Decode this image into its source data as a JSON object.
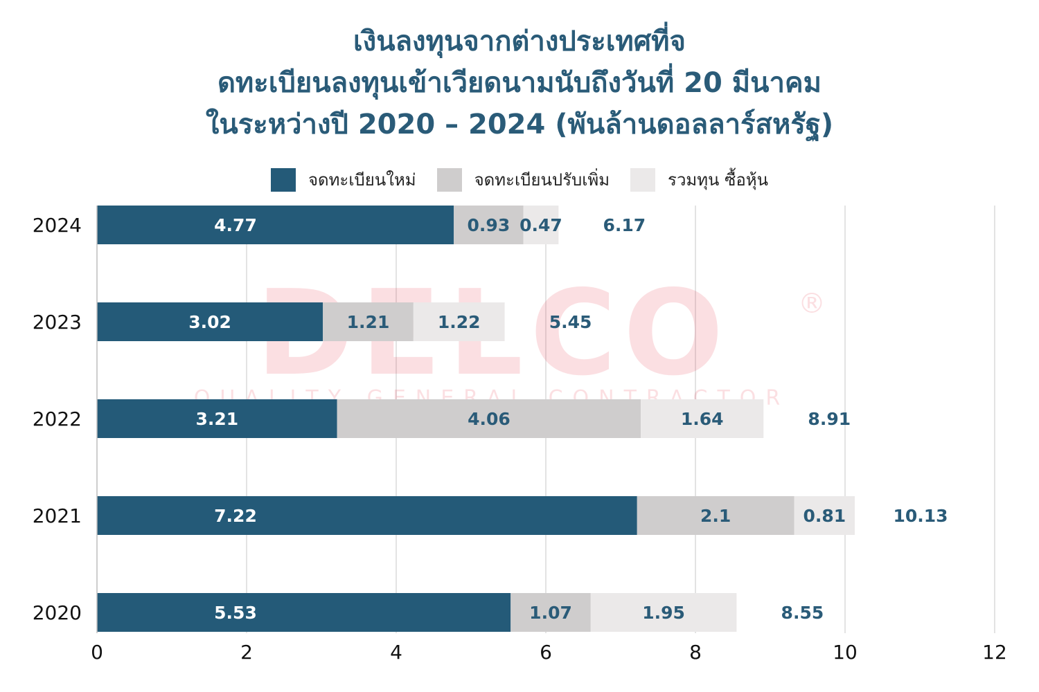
{
  "title_lines": [
    "เงินลงทุนจากต่างประเทศที่จ",
    "ดทะเบียนลงทุนเข้าเวียดนามนับถึงวันที่ 20 มีนาคม",
    "ในระหว่างปี 2020 – 2024 (พันล้านดอลลาร์สหรัฐ)"
  ],
  "watermark": {
    "main": "DELCO",
    "sub": "QUALITY GENERAL CONTRACTOR",
    "mark": "®"
  },
  "chart_data": {
    "type": "bar",
    "orientation": "horizontal",
    "stacked": true,
    "categories": [
      "2024",
      "2023",
      "2022",
      "2021",
      "2020"
    ],
    "series": [
      {
        "name": "จดทะเบียนใหม่",
        "values": [
          4.77,
          3.02,
          3.21,
          7.22,
          5.53
        ],
        "color": "#245a78",
        "label_color": "#ffffff"
      },
      {
        "name": "จดทะเบียนปรับเพิ่ม",
        "values": [
          0.93,
          1.21,
          4.06,
          2.1,
          1.07
        ],
        "color": "#cfcdcd",
        "label_color": "#2a5b78"
      },
      {
        "name": "รวมทุน ซื้อหุ้น",
        "values": [
          0.47,
          1.22,
          1.64,
          0.81,
          1.95
        ],
        "color": "#ebe9e9",
        "label_color": "#2a5b78"
      }
    ],
    "value_labels": [
      [
        "4.77",
        "3.02",
        "3.21",
        "7.22",
        "5.53"
      ],
      [
        "0.93",
        "1.21",
        "4.06",
        "2.1",
        "1.07"
      ],
      [
        "0.47",
        "1.22",
        "1.64",
        "0.81",
        "1.95"
      ]
    ],
    "totals": [
      "6.17",
      "5.45",
      "8.91",
      "10.13",
      "8.55"
    ],
    "total_color": "#2a5b78",
    "xlim": [
      0,
      12
    ],
    "xticks": [
      0,
      2,
      4,
      6,
      8,
      10,
      12
    ],
    "grid": true,
    "legend_position": "top"
  }
}
